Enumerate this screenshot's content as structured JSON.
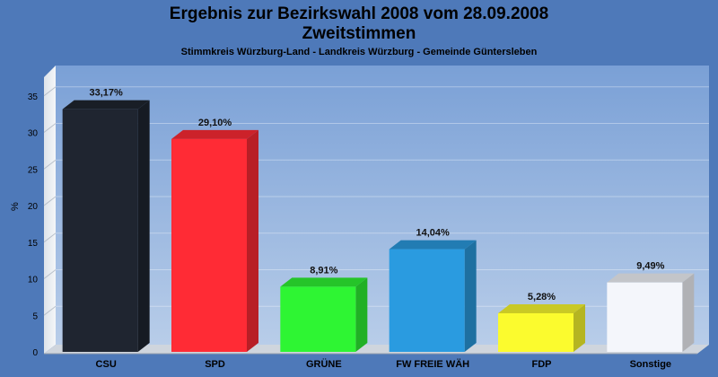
{
  "chart_data": {
    "type": "bar",
    "title": "Ergebnis zur Bezirkswahl 2008 vom 28.09.2008",
    "subtitle": "Zweitstimmen",
    "caption": "Stimmkreis Würzburg-Land - Landkreis Würzburg - Gemeinde Güntersleben",
    "ylabel": "%",
    "xlabel": "",
    "ylim": [
      0,
      37.5
    ],
    "yticks": [
      0,
      5,
      10,
      15,
      20,
      25,
      30,
      35
    ],
    "grid": true,
    "categories": [
      "CSU",
      "SPD",
      "GRÜNE",
      "FW FREIE WÄH",
      "FDP",
      "Sonstige"
    ],
    "values": [
      33.17,
      29.1,
      8.91,
      14.04,
      5.28,
      9.49
    ],
    "value_labels": [
      "33,17%",
      "29,10%",
      "8,91%",
      "14,04%",
      "5,28%",
      "9,49%"
    ],
    "colors": [
      "#1f2530",
      "#ff2b35",
      "#2ef533",
      "#2a9be0",
      "#fbfb2e",
      "#f4f6fb"
    ]
  }
}
